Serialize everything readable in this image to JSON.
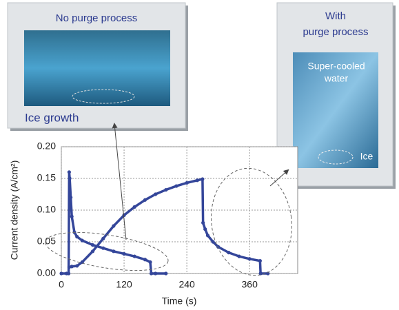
{
  "chart_data": {
    "type": "line",
    "ylabel": "Current density (A/cm²)",
    "xlabel": "Time (s)",
    "xlim": [
      0,
      452
    ],
    "ylim": [
      0,
      0.2
    ],
    "xticks": [
      0,
      120,
      240,
      360
    ],
    "yticks": [
      {
        "value": 0,
        "label": "0.00"
      },
      0.05,
      {
        "value": 0.1,
        "label": "0.10"
      },
      0.15,
      {
        "value": 0.2,
        "label": "0.20"
      }
    ],
    "grid": true,
    "series": [
      {
        "color": "#34469a",
        "x": [
          0,
          10,
          14,
          15,
          16,
          18,
          20,
          25,
          30,
          40,
          60,
          80,
          100,
          120,
          140,
          160,
          170,
          172,
          180,
          200
        ],
        "values": [
          0,
          0,
          0,
          0.16,
          0.15,
          0.12,
          0.09,
          0.065,
          0.058,
          0.052,
          0.045,
          0.04,
          0.035,
          0.031,
          0.027,
          0.022,
          0.018,
          0,
          0,
          0
        ]
      },
      {
        "color": "#34469a",
        "x": [
          15,
          20,
          30,
          40,
          60,
          80,
          100,
          120,
          140,
          160,
          180,
          200,
          220,
          240,
          260,
          270,
          271,
          275,
          280,
          290,
          300,
          320,
          340,
          360,
          380,
          381,
          395
        ],
        "values": [
          0.01,
          0.011,
          0.012,
          0.018,
          0.035,
          0.055,
          0.075,
          0.092,
          0.105,
          0.116,
          0.125,
          0.132,
          0.138,
          0.143,
          0.147,
          0.149,
          0.08,
          0.07,
          0.06,
          0.05,
          0.042,
          0.033,
          0.027,
          0.023,
          0.02,
          0,
          0
        ]
      }
    ],
    "annotations": {
      "left_title": "No purge process",
      "left_label": "Ice growth",
      "right_title_1": "With",
      "right_title_2": "purge process",
      "right_label_1": "Super-cooled",
      "right_label_2": "water",
      "right_label_3": "Ice"
    }
  }
}
